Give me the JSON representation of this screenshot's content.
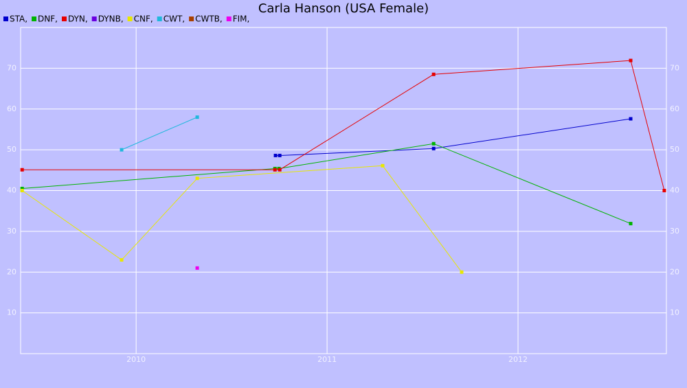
{
  "chart_data": {
    "type": "line",
    "title": "Carla Hanson (USA Female)",
    "xlim": [
      2009.395,
      2012.777
    ],
    "xticks": [
      2010,
      2011,
      2012
    ],
    "ylim": [
      0,
      80
    ],
    "yticks": [
      10,
      20,
      30,
      40,
      50,
      60,
      70
    ],
    "grid": true,
    "series": [
      {
        "name": "STA,",
        "color": "#0000cc",
        "x": [
          2010.73,
          2010.752,
          2011.558,
          2012.59
        ],
        "values": [
          48.6,
          48.6,
          50.3,
          57.6
        ]
      },
      {
        "name": "DNF,",
        "color": "#00b400",
        "x": [
          2009.403,
          2010.727,
          2010.748,
          2011.558,
          2012.59
        ],
        "values": [
          40.5,
          45.4,
          45.4,
          51.5,
          31.9
        ]
      },
      {
        "name": "DYN,",
        "color": "#e60000",
        "x": [
          2009.403,
          2010.727,
          2010.752,
          2011.558,
          2012.59,
          2012.766
        ],
        "values": [
          45.1,
          45.1,
          45.1,
          68.5,
          71.9,
          40.0
        ]
      },
      {
        "name": "DYNB,",
        "color": "#6a00e0",
        "x": [],
        "values": []
      },
      {
        "name": "CNF,",
        "color": "#e8e800",
        "x": [
          2009.403,
          2009.924,
          2010.32,
          2011.291,
          2011.705
        ],
        "values": [
          40.0,
          23.0,
          43.0,
          46.1,
          20.0
        ]
      },
      {
        "name": "CWT,",
        "color": "#20b8dc",
        "x": [
          2009.924,
          2010.32
        ],
        "values": [
          50.0,
          58.0
        ]
      },
      {
        "name": "CWTB,",
        "color": "#a84000",
        "x": [],
        "values": []
      },
      {
        "name": "FIM,",
        "color": "#ee00ee",
        "x": [
          2010.32
        ],
        "values": [
          21.0
        ]
      }
    ]
  }
}
